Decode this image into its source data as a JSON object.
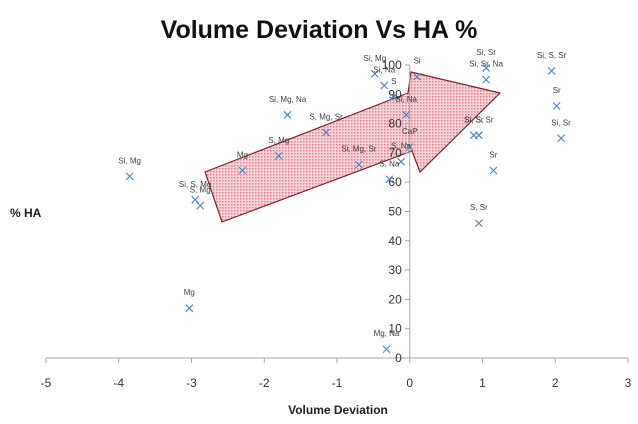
{
  "chart_data": {
    "type": "scatter",
    "title": "Volume Deviation Vs HA %",
    "xlabel": "Volume Deviation",
    "ylabel": "% HA",
    "xlim": [
      -5,
      3
    ],
    "ylim": [
      0,
      100
    ],
    "xticks": [
      -5,
      -4,
      -3,
      -2,
      -1,
      0,
      1,
      2,
      3
    ],
    "yticks": [
      0,
      10,
      20,
      30,
      40,
      50,
      60,
      70,
      80,
      90,
      100
    ],
    "grid": false,
    "legend": "none",
    "marker": "x",
    "marker_color": "#4F81BD",
    "arrow_color": "#E8A0A8",
    "points": [
      {
        "x": -3.85,
        "y": 62,
        "label": "Si, Mg"
      },
      {
        "x": -2.95,
        "y": 54,
        "label": "Si, S, Mg"
      },
      {
        "x": -2.88,
        "y": 52,
        "label": "S, Mg"
      },
      {
        "x": -3.03,
        "y": 17,
        "label": "Mg"
      },
      {
        "x": -2.3,
        "y": 64,
        "label": "Mg"
      },
      {
        "x": -1.8,
        "y": 69,
        "label": "S, Mg"
      },
      {
        "x": -1.68,
        "y": 83,
        "label": "Si, Mg, Na"
      },
      {
        "x": -1.15,
        "y": 77,
        "label": "S, Mg, Sr"
      },
      {
        "x": -0.7,
        "y": 66,
        "label": "Si, Mg, Sr"
      },
      {
        "x": -0.48,
        "y": 97,
        "label": "Si, Mg"
      },
      {
        "x": -0.35,
        "y": 93,
        "label": "Si, Na"
      },
      {
        "x": -0.22,
        "y": 89,
        "label": "S"
      },
      {
        "x": 0.1,
        "y": 96,
        "label": "Si"
      },
      {
        "x": -0.05,
        "y": 83,
        "label": "Si, Na"
      },
      {
        "x": -0.12,
        "y": 67,
        "label": "S, Na"
      },
      {
        "x": 0.0,
        "y": 72,
        "label": "CaP"
      },
      {
        "x": -0.28,
        "y": 61,
        "label": "S, Na"
      },
      {
        "x": -0.32,
        "y": 3,
        "label": "Mg, Na"
      },
      {
        "x": 1.05,
        "y": 99,
        "label": "Si, Sr"
      },
      {
        "x": 1.05,
        "y": 95,
        "label": "Si, Sr, Na"
      },
      {
        "x": 0.88,
        "y": 76,
        "label": "Si, Sr"
      },
      {
        "x": 0.95,
        "y": 76,
        "label": "Si, S, Sr"
      },
      {
        "x": 1.15,
        "y": 64,
        "label": "Sr"
      },
      {
        "x": 0.95,
        "y": 46,
        "label": "S, Sr"
      },
      {
        "x": 1.95,
        "y": 98,
        "label": "Si, S, Sr"
      },
      {
        "x": 2.02,
        "y": 86,
        "label": "Sr"
      },
      {
        "x": 2.08,
        "y": 75,
        "label": "Si, Sr"
      }
    ]
  }
}
